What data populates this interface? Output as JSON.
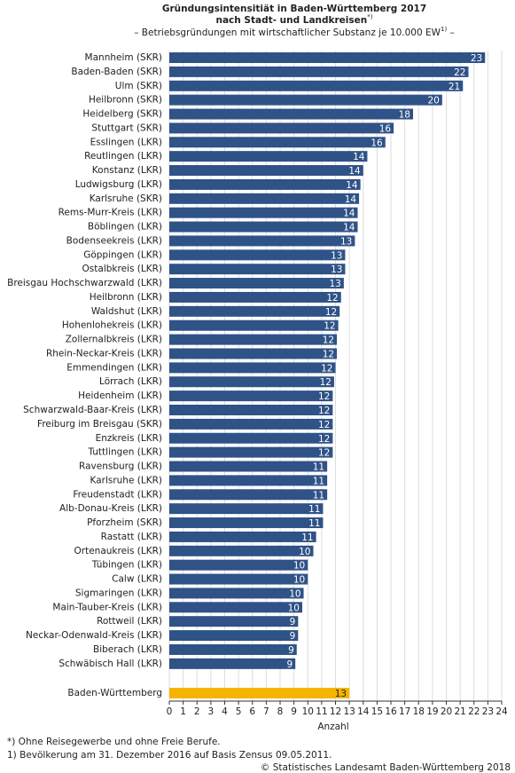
{
  "chart_data": {
    "type": "hbar",
    "title": [
      "Gründungsintensitiät in Baden-Württemberg 2017",
      "nach Stadt- und Landkreisen"
    ],
    "title_note": "*)",
    "subtitle": [
      "– Betriebsgründungen mit wirtschaftlicher Substanz je 10.000 EW",
      "1)",
      " –"
    ],
    "categories": [
      "Mannheim (SKR)",
      "Baden-Baden (SKR)",
      "Ulm (SKR)",
      "Heilbronn (SKR)",
      "Heidelberg (SKR)",
      "Stuttgart (SKR)",
      "Esslingen (LKR)",
      "Reutlingen (LKR)",
      "Konstanz (LKR)",
      "Ludwigsburg (LKR)",
      "Karlsruhe (SKR)",
      "Rems-Murr-Kreis (LKR)",
      "Böblingen (LKR)",
      "Bodenseekreis (LKR)",
      "Göppingen (LKR)",
      "Ostalbkreis (LKR)",
      "Breisgau Hochschwarzwald (LKR)",
      "Heilbronn (LKR)",
      "Waldshut (LKR)",
      "Hohenlohekreis (LKR)",
      "Zollernalbkreis (LKR)",
      "Rhein-Neckar-Kreis (LKR)",
      "Emmendingen (LKR)",
      "Lörrach (LKR)",
      "Heidenheim (LKR)",
      "Schwarzwald-Baar-Kreis (LKR)",
      "Freiburg im Breisgau (SKR)",
      "Enzkreis (LKR)",
      "Tuttlingen (LKR)",
      "Ravensburg (LKR)",
      "Karlsruhe (LKR)",
      "Freudenstadt (LKR)",
      "Alb-Donau-Kreis (LKR)",
      "Pforzheim (SKR)",
      "Rastatt (LKR)",
      "Ortenaukreis (LKR)",
      "Tübingen (LKR)",
      "Calw (LKR)",
      "Sigmaringen (LKR)",
      "Main-Tauber-Kreis (LKR)",
      "Rottweil (LKR)",
      "Neckar-Odenwald-Kreis (LKR)",
      "Biberach (LKR)",
      "Schwäbisch Hall (LKR)"
    ],
    "values": [
      22.8,
      21.6,
      21.2,
      19.7,
      17.6,
      16.2,
      15.6,
      14.3,
      14.0,
      13.8,
      13.7,
      13.6,
      13.6,
      13.4,
      12.7,
      12.7,
      12.6,
      12.4,
      12.3,
      12.2,
      12.1,
      12.1,
      12.0,
      11.9,
      11.8,
      11.8,
      11.8,
      11.8,
      11.8,
      11.4,
      11.4,
      11.4,
      11.1,
      11.1,
      10.6,
      10.4,
      10.0,
      10.0,
      9.7,
      9.6,
      9.3,
      9.3,
      9.2,
      9.1
    ],
    "value_labels": [
      "23",
      "22",
      "21",
      "20",
      "18",
      "16",
      "16",
      "14",
      "14",
      "14",
      "14",
      "14",
      "14",
      "13",
      "13",
      "13",
      "13",
      "12",
      "12",
      "12",
      "12",
      "12",
      "12",
      "12",
      "12",
      "12",
      "12",
      "12",
      "12",
      "11",
      "11",
      "11",
      "11",
      "11",
      "11",
      "10",
      "10",
      "10",
      "10",
      "10",
      "9",
      "9",
      "9",
      "9"
    ],
    "color": "#2f5287",
    "total": {
      "category": "Baden-Württemberg",
      "value": 13.0,
      "value_label": "13",
      "color": "#f5b400"
    },
    "xlim": [
      0,
      24
    ],
    "xticks": [
      0,
      1,
      2,
      3,
      4,
      5,
      6,
      7,
      8,
      9,
      10,
      11,
      12,
      13,
      14,
      15,
      16,
      17,
      18,
      19,
      20,
      21,
      22,
      23,
      24
    ],
    "xlabel": "Anzahl",
    "grid": true,
    "footnotes": [
      "*) Ohne Reisegewerbe und ohne Freie Berufe.",
      "1) Bevölkerung am 31. Dezember 2016 auf Basis Zensus 09.05.2011."
    ],
    "source": "© Statistisches Landesamt Baden-Württemberg 2018"
  }
}
